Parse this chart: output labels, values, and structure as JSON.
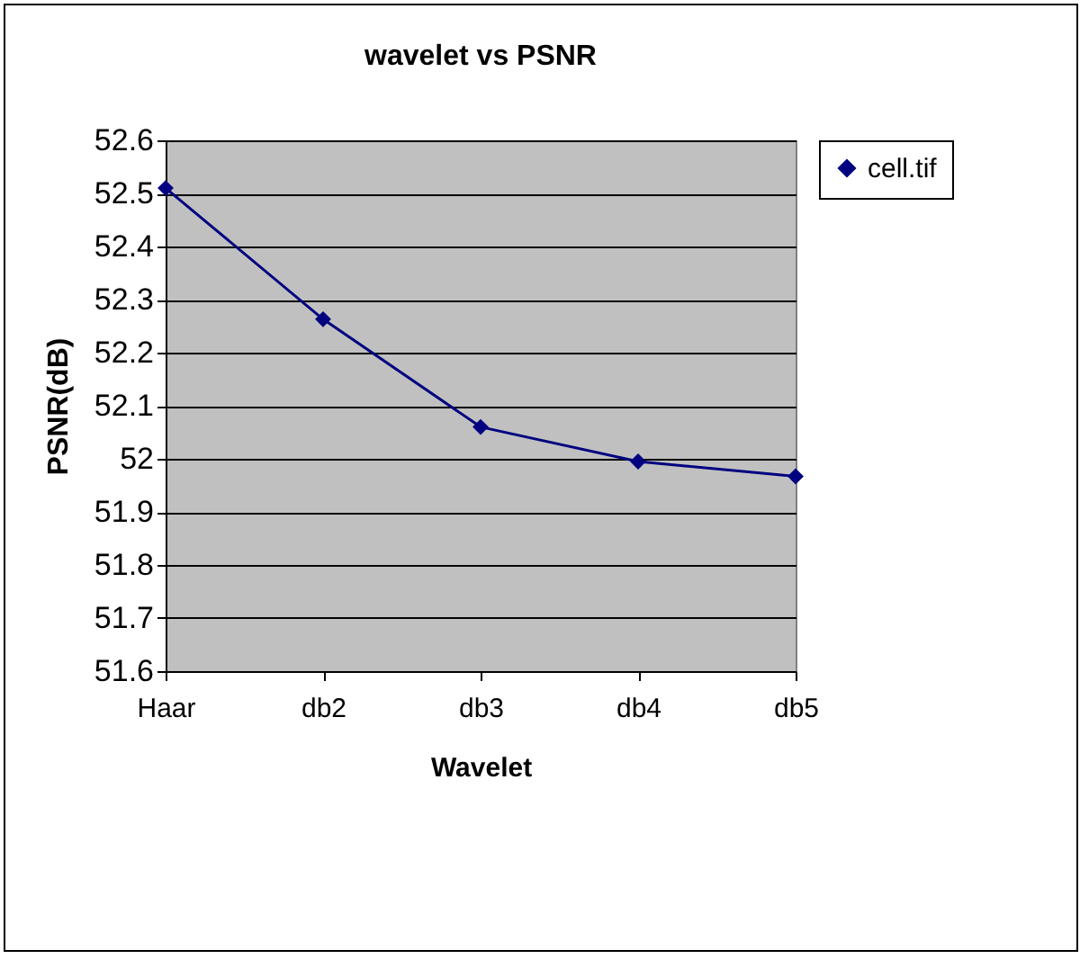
{
  "chart_data": {
    "type": "line",
    "title": "wavelet vs PSNR",
    "xlabel": "Wavelet",
    "ylabel": "PSNR(dB)",
    "categories": [
      "Haar",
      "db2",
      "db3",
      "db4",
      "db5"
    ],
    "series": [
      {
        "name": "cell.tif",
        "color": "#000080",
        "values": [
          52.51,
          52.263,
          52.06,
          51.995,
          51.967
        ]
      }
    ],
    "ylim": [
      51.6,
      52.6
    ],
    "yticks": [
      51.6,
      51.7,
      51.8,
      51.9,
      52,
      52.1,
      52.2,
      52.3,
      52.4,
      52.5,
      52.6
    ],
    "grid": "y",
    "legend": "right",
    "marker": "diamond",
    "line_style": "solid"
  }
}
